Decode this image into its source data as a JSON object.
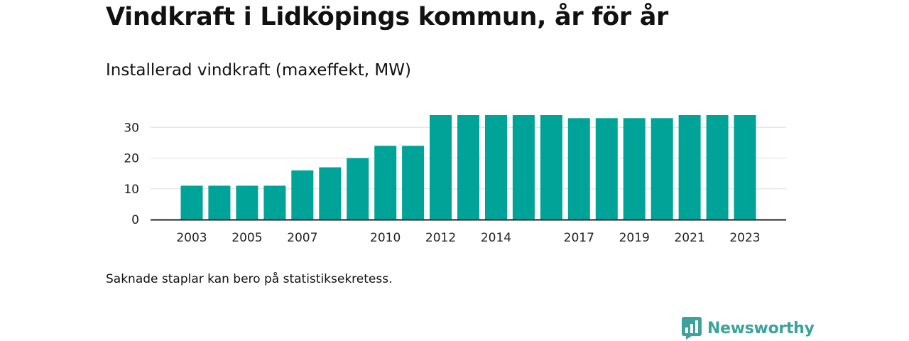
{
  "title": "Vindkraft i Lidköpings kommun, år för år",
  "subtitle": "Installerad vindkraft (maxeffekt, MW)",
  "note": "Saknade staplar kan bero på statistiksekretess.",
  "brand": {
    "name": "Newsworthy",
    "icon": "newsworthy-logo-icon",
    "color": "#3ba39b"
  },
  "colors": {
    "bar": "#00a398",
    "grid": "#dddddd",
    "axis": "#222222"
  },
  "chart_data": {
    "type": "bar",
    "title": "Vindkraft i Lidköpings kommun, år för år",
    "subtitle": "Installerad vindkraft (maxeffekt, MW)",
    "categories": [
      "2003",
      "2004",
      "2005",
      "2006",
      "2007",
      "2008",
      "2009",
      "2010",
      "2011",
      "2012",
      "2013",
      "2014",
      "2015",
      "2016",
      "2017",
      "2018",
      "2019",
      "2020",
      "2021",
      "2022",
      "2023"
    ],
    "values": [
      11,
      11,
      11,
      11,
      16,
      17,
      20,
      24,
      24,
      34,
      34,
      34,
      34,
      34,
      33,
      33,
      33,
      33,
      34,
      34,
      34
    ],
    "x_tick_labels": [
      "2003",
      "2005",
      "2007",
      "2010",
      "2012",
      "2014",
      "2017",
      "2019",
      "2021",
      "2023"
    ],
    "y_ticks": [
      0,
      10,
      20,
      30
    ],
    "ylim": [
      0,
      34
    ],
    "grid": true,
    "xlabel": "",
    "ylabel": ""
  }
}
